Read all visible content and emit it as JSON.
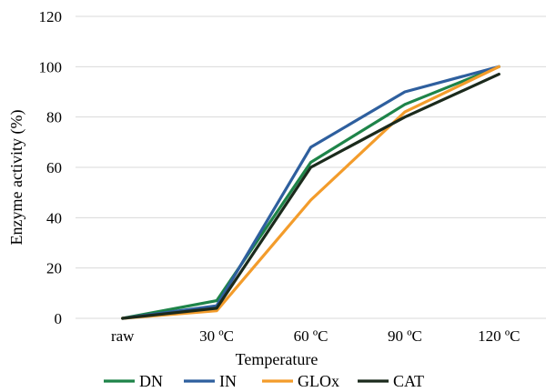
{
  "chart_data": {
    "type": "line",
    "categories": [
      "raw",
      "30 ºC",
      "60 ºC",
      "90 ºC",
      "120 ºC"
    ],
    "xlabel": "Temperature",
    "ylabel": "Enzyme activity (%)",
    "ylim": [
      0,
      120
    ],
    "yticks": [
      0,
      20,
      40,
      60,
      80,
      100,
      120
    ],
    "grid": true,
    "legend_position": "bottom",
    "series": [
      {
        "name": "DN",
        "color": "#1e8449",
        "values": [
          0,
          7,
          62,
          85,
          100
        ]
      },
      {
        "name": "IN",
        "color": "#2e5f9e",
        "values": [
          0,
          5,
          68,
          90,
          100
        ]
      },
      {
        "name": "GLOx",
        "color": "#f39c2b",
        "values": [
          0,
          3,
          47,
          82,
          100
        ]
      },
      {
        "name": "CAT",
        "color": "#1b2a1c",
        "values": [
          0,
          4,
          60,
          80,
          97
        ]
      }
    ]
  }
}
